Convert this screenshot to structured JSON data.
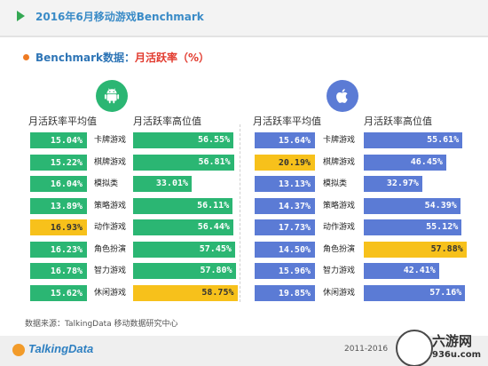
{
  "header": {
    "title": "2016年6月移动游戏Benchmark"
  },
  "subtitle": {
    "main": "Benchmark数据：",
    "accent": "月活跃率（%）"
  },
  "columns": {
    "avg_label": "月活跃率平均值",
    "high_label": "月活跃率高位值"
  },
  "icons": {
    "android": "android-icon",
    "ios": "apple-icon"
  },
  "colors": {
    "android_bar": "#2bb673",
    "ios_bar": "#5b7bd5",
    "highlight_bar": "#f7c11b",
    "title": "#3a8bc7",
    "accent": "#e23a2e"
  },
  "chart_data": [
    {
      "type": "bar",
      "platform": "Android",
      "categories": [
        "卡牌游戏",
        "棋牌游戏",
        "模拟类",
        "策略游戏",
        "动作游戏",
        "角色扮演",
        "智力游戏",
        "休闲游戏"
      ],
      "series": [
        {
          "name": "月活跃率平均值",
          "values": [
            15.04,
            15.22,
            16.04,
            13.89,
            16.93,
            16.23,
            16.78,
            15.62
          ],
          "labels": [
            "15.04%",
            "15.22%",
            "16.04%",
            "13.89%",
            "16.93%",
            "16.23%",
            "16.78%",
            "15.62%"
          ],
          "highlight": [
            false,
            false,
            false,
            false,
            true,
            false,
            false,
            false
          ]
        },
        {
          "name": "月活跃率高位值",
          "values": [
            56.55,
            56.81,
            33.01,
            56.11,
            56.44,
            57.45,
            57.8,
            58.75
          ],
          "labels": [
            "56.55%",
            "56.81%",
            "33.01%",
            "56.11%",
            "56.44%",
            "57.45%",
            "57.80%",
            "58.75%"
          ],
          "highlight": [
            false,
            false,
            false,
            false,
            false,
            false,
            false,
            true
          ]
        }
      ]
    },
    {
      "type": "bar",
      "platform": "iOS",
      "categories": [
        "卡牌游戏",
        "棋牌游戏",
        "模拟类",
        "策略游戏",
        "动作游戏",
        "角色扮演",
        "智力游戏",
        "休闲游戏"
      ],
      "series": [
        {
          "name": "月活跃率平均值",
          "values": [
            15.64,
            20.19,
            13.13,
            14.37,
            17.73,
            14.5,
            15.96,
            19.85
          ],
          "labels": [
            "15.64%",
            "20.19%",
            "13.13%",
            "14.37%",
            "17.73%",
            "14.50%",
            "15.96%",
            "19.85%"
          ],
          "highlight": [
            false,
            true,
            false,
            false,
            false,
            false,
            false,
            false
          ]
        },
        {
          "name": "月活跃率高位值",
          "values": [
            55.61,
            46.45,
            32.97,
            54.39,
            55.12,
            57.88,
            42.41,
            57.16
          ],
          "labels": [
            "55.61%",
            "46.45%",
            "32.97%",
            "54.39%",
            "55.12%",
            "57.88%",
            "42.41%",
            "57.16%"
          ],
          "highlight": [
            false,
            false,
            false,
            false,
            false,
            true,
            false,
            false
          ]
        }
      ]
    }
  ],
  "footer": {
    "source": "数据来源：TalkingData 移动数据研究中心",
    "logo": "TalkingData",
    "years": "2011-2016",
    "watermark_name": "六游网",
    "watermark_url": "936u.com"
  }
}
